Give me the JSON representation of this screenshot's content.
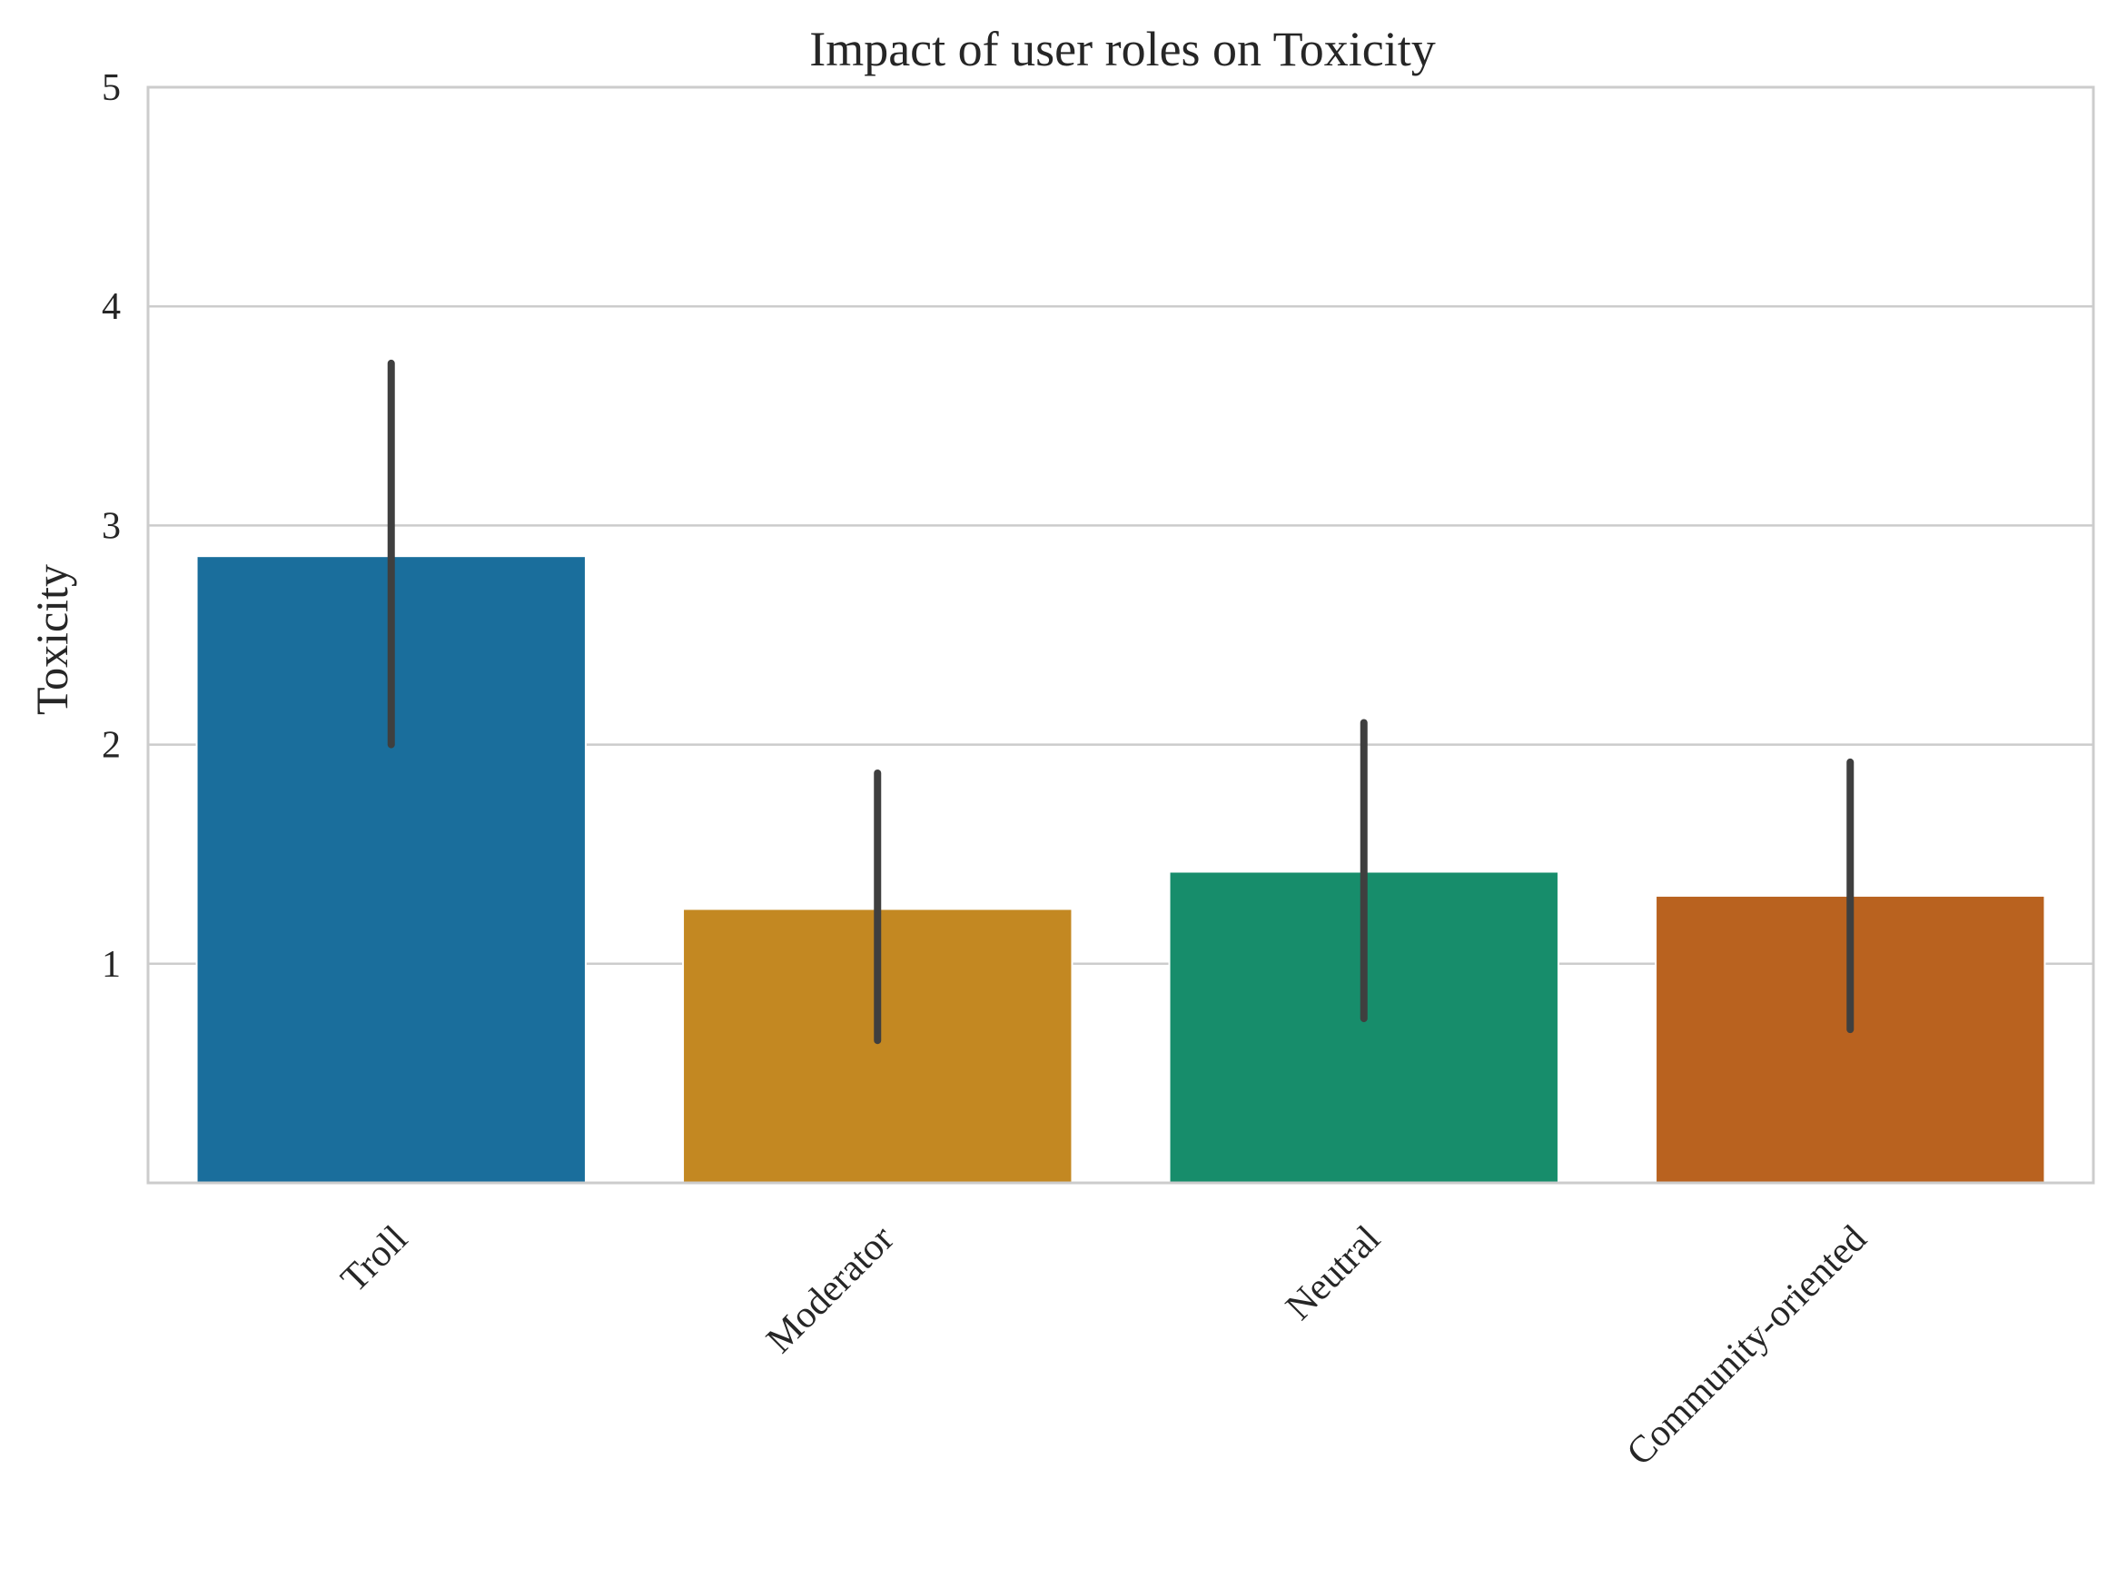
{
  "chart_data": {
    "type": "bar",
    "title": "Impact of user roles on Toxicity",
    "xlabel": "",
    "ylabel": "Toxicity",
    "ylim": [
      0,
      5
    ],
    "yticks": [
      1,
      2,
      3,
      4,
      5
    ],
    "grid": true,
    "categories": [
      "Troll",
      "Moderator",
      "Neutral",
      "Community-oriented"
    ],
    "values": [
      2.86,
      1.25,
      1.42,
      1.31
    ],
    "error_low": [
      2.0,
      0.65,
      0.75,
      0.7
    ],
    "error_high": [
      3.74,
      1.87,
      2.1,
      1.92
    ],
    "colors": [
      "#1a6e9c",
      "#c38822",
      "#178d6b",
      "#b9621f"
    ],
    "error_color": "#3f3f3f"
  }
}
